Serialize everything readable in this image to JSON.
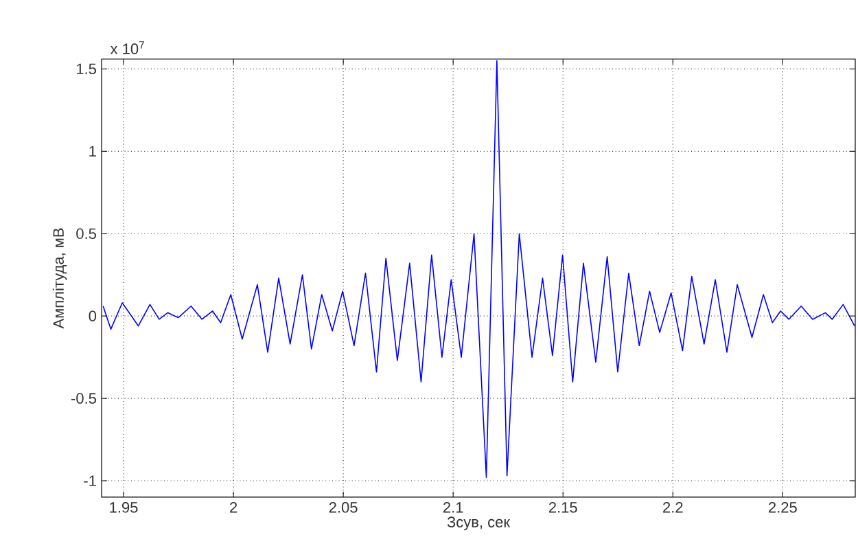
{
  "chart_data": {
    "type": "line",
    "xlabel": "Зсув, сек",
    "ylabel": "Амплітуда, мВ",
    "annotations": [
      "x 10$^{7}$"
    ],
    "xlim": [
      1.94,
      2.283
    ],
    "ylim": [
      -1.1,
      1.56
    ],
    "xticks": [
      1.95,
      2,
      2.05,
      2.1,
      2.15,
      2.2,
      2.25
    ],
    "yticks": [
      -1,
      -0.5,
      0,
      0.5,
      1,
      1.5
    ],
    "grid": true,
    "series": [
      {
        "color": "#0000ff",
        "x": [
          1.9407,
          1.9442,
          1.9494,
          1.9567,
          1.962,
          1.9662,
          1.9701,
          1.9749,
          1.9807,
          1.9857,
          1.9905,
          1.9942,
          1.9988,
          2.004,
          2.0109,
          2.0156,
          2.0206,
          2.0258,
          2.0314,
          2.0355,
          2.0402,
          2.045,
          2.0497,
          2.0549,
          2.0601,
          2.0651,
          2.0694,
          2.0746,
          2.0802,
          2.0854,
          2.0902,
          2.0949,
          2.0991,
          2.1037,
          2.1095,
          2.1151,
          2.1199,
          2.1245,
          2.1301,
          2.1359,
          2.1407,
          2.1452,
          2.1498,
          2.1544,
          2.1593,
          2.1649,
          2.1701,
          2.1749,
          2.1799,
          2.1847,
          2.1894,
          2.194,
          2.1992,
          2.2044,
          2.2086,
          2.2142,
          2.2193,
          2.2246,
          2.2293,
          2.236,
          2.2412,
          2.2453,
          2.249,
          2.2528,
          2.2584,
          2.2636,
          2.2694,
          2.2725,
          2.2775,
          2.2827
        ],
        "values": [
          0.06,
          -0.08,
          0.08,
          -0.06,
          0.07,
          -0.02,
          0.02,
          -0.01,
          0.06,
          -0.02,
          0.03,
          -0.04,
          0.13,
          -0.14,
          0.19,
          -0.22,
          0.23,
          -0.17,
          0.25,
          -0.2,
          0.13,
          -0.09,
          0.15,
          -0.18,
          0.26,
          -0.34,
          0.35,
          -0.27,
          0.32,
          -0.4,
          0.37,
          -0.25,
          0.22,
          -0.25,
          0.5,
          -0.98,
          1.55,
          -0.97,
          0.5,
          -0.25,
          0.23,
          -0.24,
          0.37,
          -0.4,
          0.32,
          -0.28,
          0.36,
          -0.34,
          0.26,
          -0.18,
          0.15,
          -0.1,
          0.14,
          -0.21,
          0.24,
          -0.17,
          0.22,
          -0.22,
          0.19,
          -0.13,
          0.13,
          -0.04,
          0.03,
          -0.02,
          0.06,
          -0.02,
          0.02,
          -0.02,
          0.07,
          -0.06
        ]
      }
    ]
  }
}
